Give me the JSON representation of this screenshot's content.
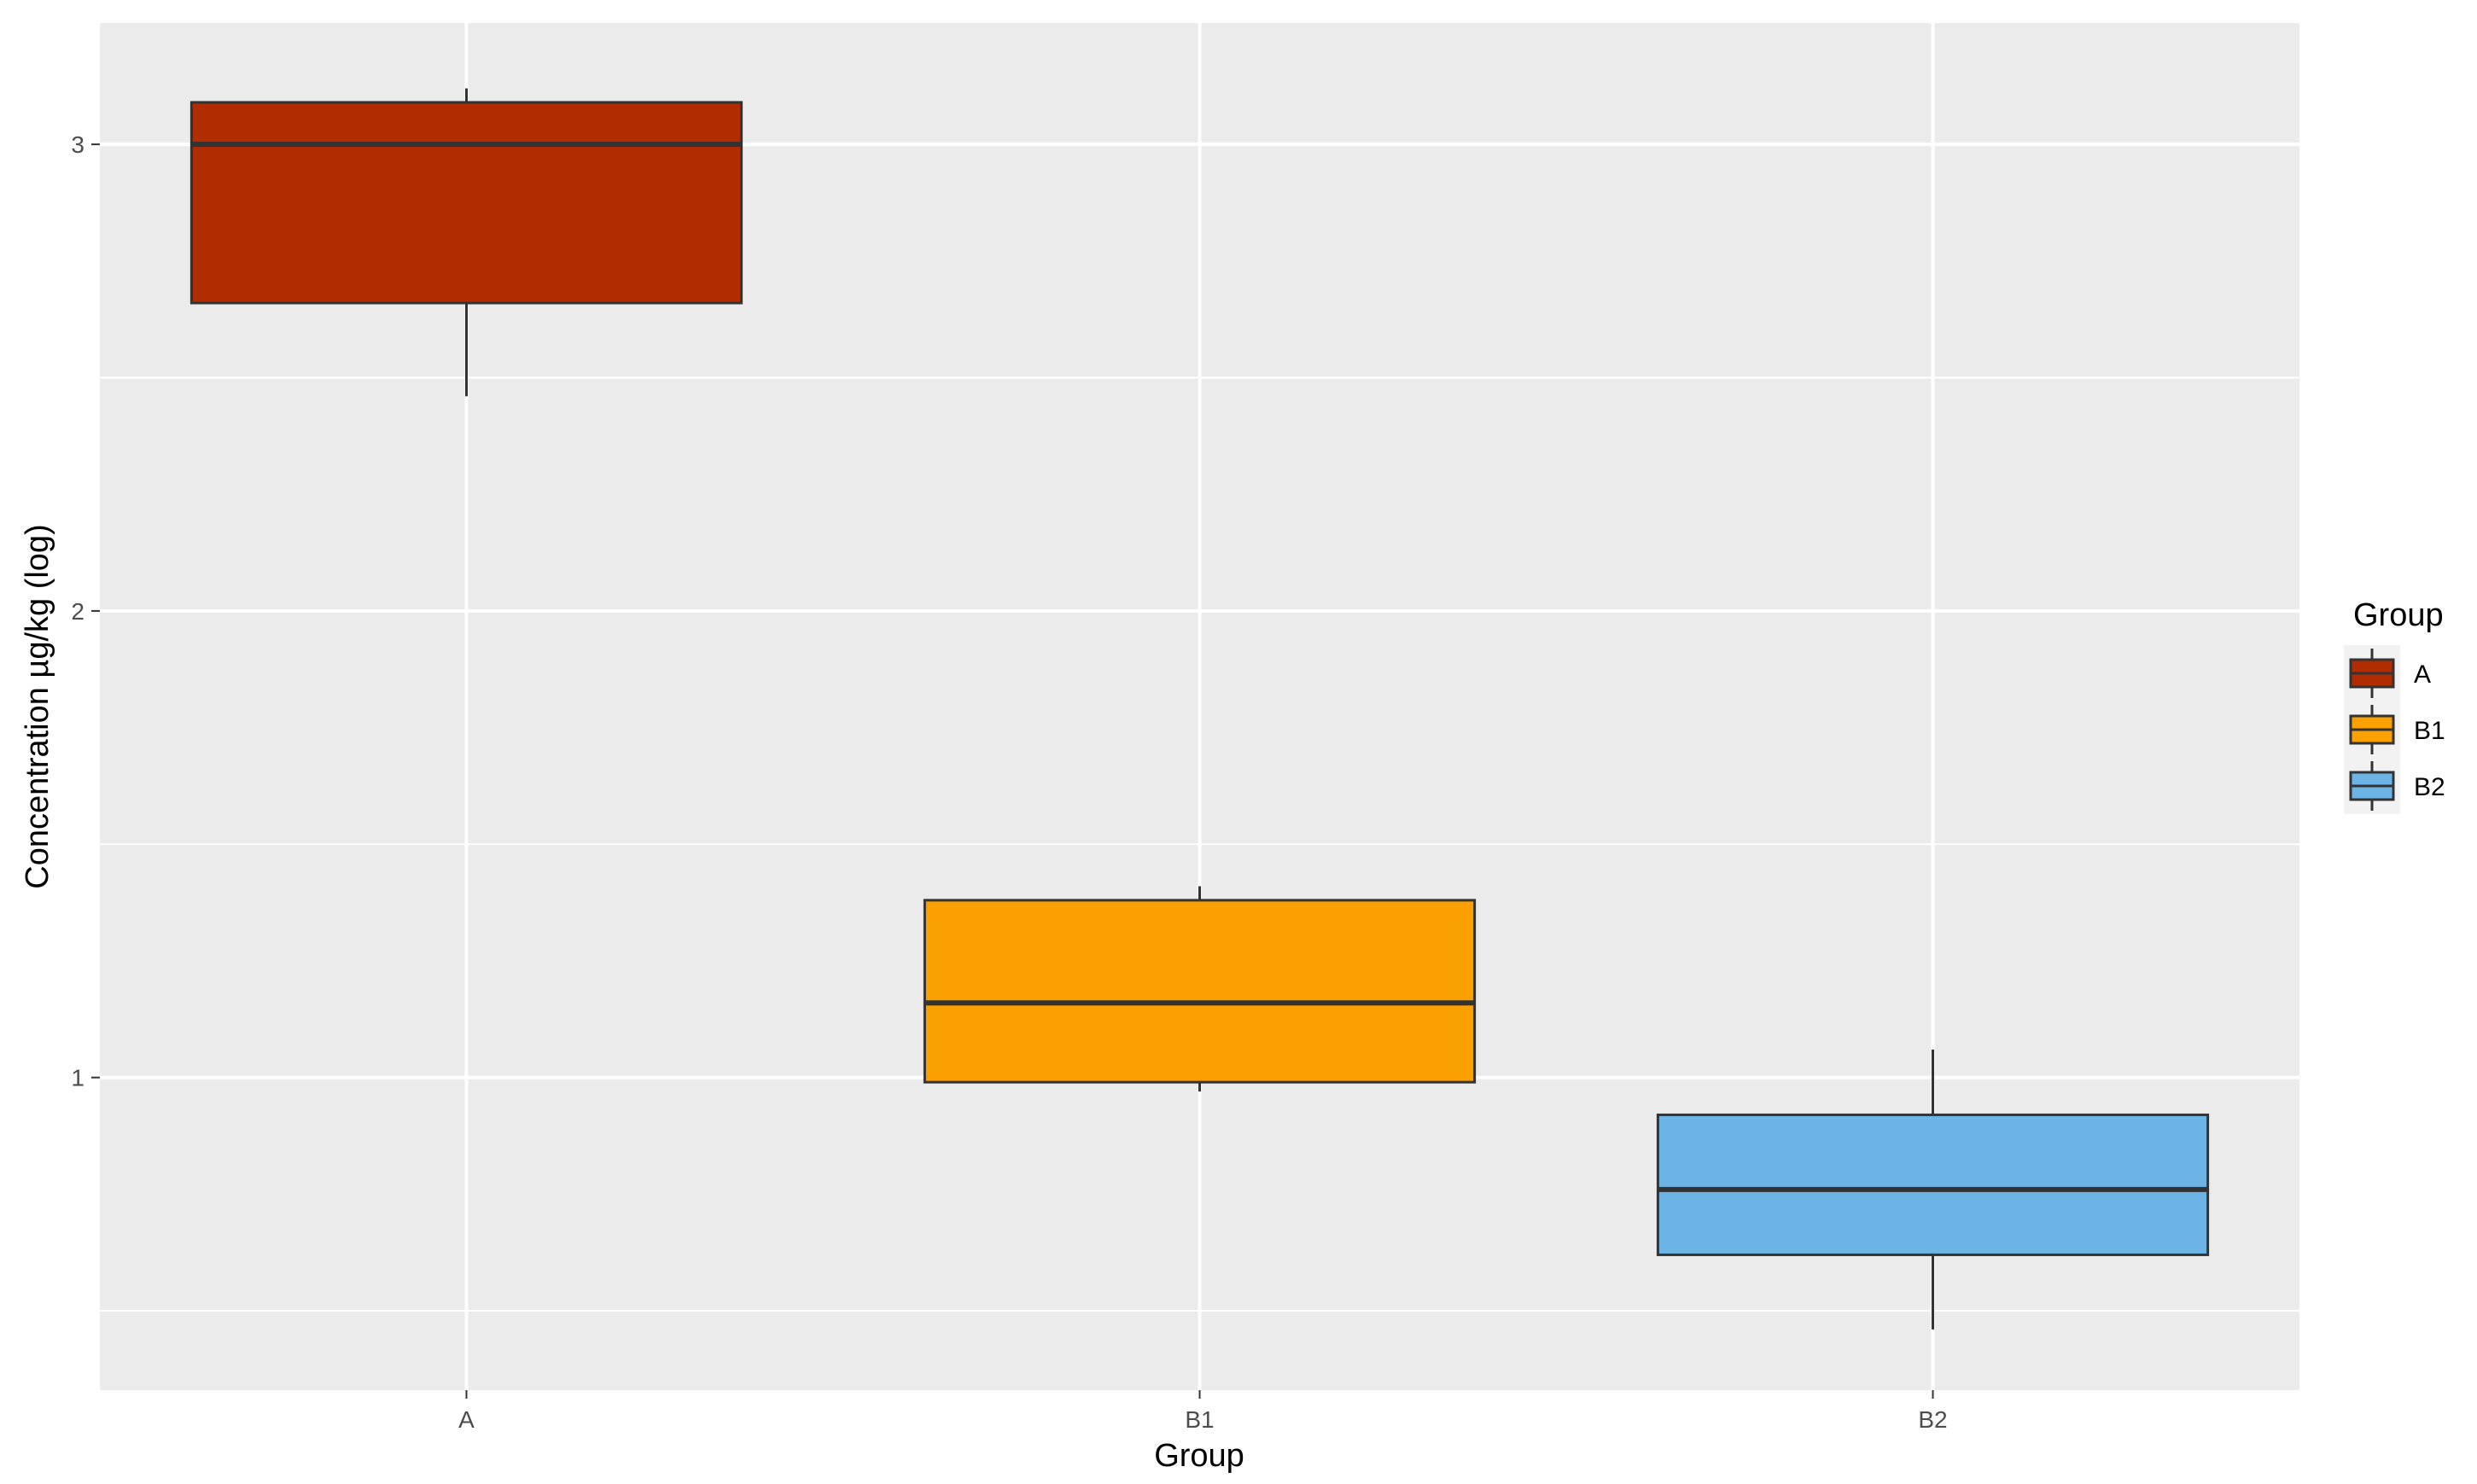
{
  "chart_data": {
    "type": "boxplot",
    "title": "",
    "xlabel": "Group",
    "ylabel": "Concentration µg/kg (log)",
    "categories": [
      "A",
      "B1",
      "B2"
    ],
    "ylim": [
      0.33,
      3.26
    ],
    "yticks": [
      1,
      2,
      3
    ],
    "ytick_labels": [
      "1",
      "2",
      "3"
    ],
    "grid": true,
    "panel_background": "#EBEBEB",
    "legend": {
      "title": "Group",
      "position": "right",
      "entries": [
        "A",
        "B1",
        "B2"
      ]
    },
    "series": [
      {
        "name": "A",
        "color": "#B22C02",
        "whisker_low": 2.46,
        "q1": 2.66,
        "median": 3.0,
        "q3": 3.09,
        "whisker_high": 3.12
      },
      {
        "name": "B1",
        "color": "#FAA000",
        "whisker_low": 0.97,
        "q1": 0.99,
        "median": 1.16,
        "q3": 1.38,
        "whisker_high": 1.41
      },
      {
        "name": "B2",
        "color": "#6DB4E6",
        "whisker_low": 0.46,
        "q1": 0.62,
        "median": 0.76,
        "q3": 0.92,
        "whisker_high": 1.06
      }
    ]
  }
}
